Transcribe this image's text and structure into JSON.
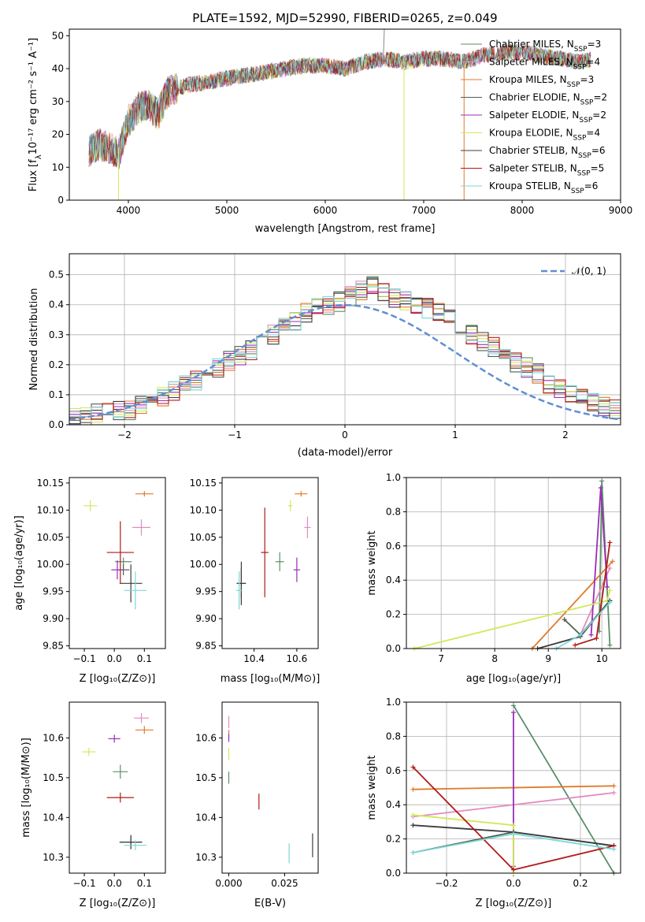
{
  "figure": {
    "title": "PLATE=1592, MJD=52990, FIBERID=0265, z=0.049"
  },
  "models": [
    {
      "label": "Chabrier MILES, N",
      "sub": "SSP",
      "tail": "=3",
      "color": "#5b8f6a"
    },
    {
      "label": "Salpeter MILES, N",
      "sub": "SSP",
      "tail": "=4",
      "color": "#e58ac0"
    },
    {
      "label": "Kroupa MILES, N",
      "sub": "SSP",
      "tail": "=3",
      "color": "#e07b2a"
    },
    {
      "label": "Chabrier ELODIE, N",
      "sub": "SSP",
      "tail": "=2",
      "color": "#4f5f4f"
    },
    {
      "label": "Salpeter ELODIE, N",
      "sub": "SSP",
      "tail": "=2",
      "color": "#9a2eb6"
    },
    {
      "label": "Kroupa ELODIE, N",
      "sub": "SSP",
      "tail": "=4",
      "color": "#d2e85a"
    },
    {
      "label": "Chabrier STELIB, N",
      "sub": "SSP",
      "tail": "=6",
      "color": "#3d3d3d"
    },
    {
      "label": "Salpeter STELIB, N",
      "sub": "SSP",
      "tail": "=5",
      "color": "#b01a1a"
    },
    {
      "label": "Kroupa STELIB, N",
      "sub": "SSP",
      "tail": "=6",
      "color": "#7fd6d6"
    }
  ],
  "chart_data": [
    {
      "type": "line",
      "id": "spectrum",
      "title": "PLATE=1592, MJD=52990, FIBERID=0265, z=0.049",
      "xlabel": "wavelength [Angstrom, rest frame]",
      "ylabel_main": "Flux [f",
      "ylabel_sub": "λ",
      "ylabel_tail": "10⁻¹⁷ erg cm⁻² s⁻¹ A⁻¹]",
      "xlim": [
        3400,
        9000
      ],
      "ylim": [
        0,
        52
      ],
      "xticks": [
        "4000",
        "5000",
        "6000",
        "7000",
        "8000",
        "9000"
      ],
      "yticks": [
        "0",
        "10",
        "20",
        "30",
        "40",
        "50"
      ],
      "continuum": {
        "x": [
          3600,
          3700,
          3800,
          3900,
          4000,
          4100,
          4200,
          4300,
          4400,
          4500,
          4600,
          4800,
          5000,
          5200,
          5400,
          5600,
          5800,
          6000,
          6200,
          6400,
          6600,
          6800,
          7000,
          7200,
          7400,
          7600,
          7800,
          8000,
          8200,
          8400,
          8600,
          8700
        ],
        "y": [
          15,
          17,
          16,
          14,
          24,
          28,
          29,
          26,
          33,
          34,
          35,
          36,
          37,
          38,
          39,
          40,
          41,
          41,
          40,
          42,
          43,
          42,
          43,
          43,
          42,
          44,
          45,
          45,
          44,
          43,
          42,
          43
        ]
      },
      "legend_position": "top-right",
      "grid": false
    },
    {
      "type": "histogram",
      "id": "residuals",
      "xlabel": "(data-model)/error",
      "ylabel": "Normed distribution",
      "xlim": [
        -2.5,
        2.5
      ],
      "ylim": [
        0,
        0.57
      ],
      "xticks": [
        -2,
        -1,
        0,
        1,
        2
      ],
      "xtick_labels": [
        "−2",
        "−1",
        "0",
        "1",
        "2"
      ],
      "yticks": [
        "0.0",
        "0.1",
        "0.2",
        "0.3",
        "0.4",
        "0.5"
      ],
      "grid": true,
      "bin_width": 0.1,
      "bin_start": -2.5,
      "base_values": [
        0.03,
        0.03,
        0.04,
        0.04,
        0.05,
        0.05,
        0.06,
        0.07,
        0.09,
        0.11,
        0.13,
        0.15,
        0.17,
        0.19,
        0.21,
        0.23,
        0.25,
        0.28,
        0.3,
        0.32,
        0.35,
        0.37,
        0.39,
        0.4,
        0.41,
        0.43,
        0.45,
        0.46,
        0.44,
        0.42,
        0.41,
        0.4,
        0.39,
        0.37,
        0.35,
        0.32,
        0.3,
        0.28,
        0.26,
        0.23,
        0.21,
        0.19,
        0.17,
        0.14,
        0.12,
        0.1,
        0.09,
        0.08,
        0.06,
        0.05
      ],
      "gaussian_label": "𝒩(0, 1)",
      "gaussian_color": "#5f8fd6"
    },
    {
      "type": "scatter",
      "id": "age-vs-Z",
      "xlabel": "Z [log₁₀(Z/Z⊙)]",
      "ylabel": "age  [log₁₀(age/yr)]",
      "xlim": [
        -0.15,
        0.17
      ],
      "ylim": [
        9.845,
        10.16
      ],
      "xticks": [
        "−0.1",
        "0.0",
        "0.1"
      ],
      "yticks": [
        "9.85",
        "9.90",
        "9.95",
        "10.00",
        "10.05",
        "10.10",
        "10.15"
      ],
      "points": [
        {
          "model": 0,
          "x": 0.03,
          "y": 10.005,
          "dx": 0.055,
          "dy": 0.015
        },
        {
          "model": 1,
          "x": 0.09,
          "y": 10.068,
          "dx": 0.06,
          "dy": 0.03
        },
        {
          "model": 2,
          "x": 0.1,
          "y": 10.13,
          "dx": 0.06,
          "dy": 0.01
        },
        {
          "model": 3,
          "x": 0.03,
          "y": 9.99,
          "dx": 0.04,
          "dy": 0.02
        },
        {
          "model": 4,
          "x": 0.01,
          "y": 9.99,
          "dx": 0.04,
          "dy": 0.035
        },
        {
          "model": 5,
          "x": -0.08,
          "y": 10.108,
          "dx": 0.045,
          "dy": 0.02
        },
        {
          "model": 6,
          "x": 0.055,
          "y": 9.965,
          "dx": 0.075,
          "dy": 0.07
        },
        {
          "model": 7,
          "x": 0.02,
          "y": 10.022,
          "dx": 0.09,
          "dy": 0.115
        },
        {
          "model": 8,
          "x": 0.07,
          "y": 9.952,
          "dx": 0.075,
          "dy": 0.07
        }
      ]
    },
    {
      "type": "scatter",
      "id": "age-vs-mass",
      "xlabel": "mass [log₁₀(M/M⊙)]",
      "ylabel": "",
      "xlim": [
        10.25,
        10.7
      ],
      "ylim": [
        9.845,
        10.16
      ],
      "xticks": [
        "10.4",
        "10.6"
      ],
      "xtick_values": [
        10.4,
        10.6
      ],
      "yticks": [
        "9.85",
        "9.90",
        "9.95",
        "10.00",
        "10.05",
        "10.10",
        "10.15"
      ],
      "points": [
        {
          "model": 0,
          "x": 10.52,
          "y": 10.005,
          "dx": 0.04,
          "dy": 0.035
        },
        {
          "model": 1,
          "x": 10.65,
          "y": 10.068,
          "dx": 0.03,
          "dy": 0.04
        },
        {
          "model": 2,
          "x": 10.62,
          "y": 10.13,
          "dx": 0.06,
          "dy": 0.01
        },
        {
          "model": 3,
          "x": 10.34,
          "y": 9.965,
          "dx": 0.045,
          "dy": 0.055
        },
        {
          "model": 4,
          "x": 10.6,
          "y": 9.99,
          "dx": 0.03,
          "dy": 0.045
        },
        {
          "model": 5,
          "x": 10.57,
          "y": 10.108,
          "dx": 0.02,
          "dy": 0.02
        },
        {
          "model": 6,
          "x": 10.34,
          "y": 9.965,
          "dx": 0.04,
          "dy": 0.08
        },
        {
          "model": 7,
          "x": 10.45,
          "y": 10.022,
          "dx": 0.035,
          "dy": 0.165
        },
        {
          "model": 8,
          "x": 10.33,
          "y": 9.952,
          "dx": 0.03,
          "dy": 0.07
        }
      ]
    },
    {
      "type": "line",
      "id": "weight-vs-age",
      "xlabel": "age  [log₁₀(age/yr)]",
      "ylabel": "mass weight",
      "xlim": [
        6.35,
        10.35
      ],
      "ylim": [
        0,
        1.0
      ],
      "xticks": [
        "7",
        "8",
        "9",
        "10"
      ],
      "xtick_values": [
        7,
        8,
        9,
        10
      ],
      "yticks": [
        "0.0",
        "0.2",
        "0.4",
        "0.6",
        "0.8",
        "1.0"
      ],
      "grid": true,
      "series": [
        {
          "model": 0,
          "x": [
            9.95,
            10.0,
            10.15
          ],
          "y": [
            0.1,
            0.98,
            0.02
          ]
        },
        {
          "model": 1,
          "x": [
            9.6,
            10.15
          ],
          "y": [
            0.08,
            0.47
          ]
        },
        {
          "model": 2,
          "x": [
            8.7,
            10.2
          ],
          "y": [
            0.0,
            0.51
          ]
        },
        {
          "model": 3,
          "x": [
            9.3,
            9.6,
            10.15
          ],
          "y": [
            0.17,
            0.08,
            0.28
          ]
        },
        {
          "model": 4,
          "x": [
            9.8,
            9.98,
            10.1
          ],
          "y": [
            0.08,
            0.94,
            0.36
          ]
        },
        {
          "model": 5,
          "x": [
            6.5,
            10.1,
            10.15
          ],
          "y": [
            0.0,
            0.28,
            0.34
          ]
        },
        {
          "model": 6,
          "x": [
            8.8,
            9.6,
            10.15
          ],
          "y": [
            0.0,
            0.07,
            0.28
          ]
        },
        {
          "model": 7,
          "x": [
            9.5,
            9.9,
            10.15
          ],
          "y": [
            0.02,
            0.06,
            0.62
          ]
        },
        {
          "model": 8,
          "x": [
            9.15,
            9.6,
            10.15
          ],
          "y": [
            0.0,
            0.08,
            0.27
          ]
        }
      ]
    },
    {
      "type": "scatter",
      "id": "mass-vs-Z",
      "xlabel": "Z [log₁₀(Z/Z⊙)]",
      "ylabel": "mass [log₁₀(M/M⊙)]",
      "xlim": [
        -0.15,
        0.17
      ],
      "ylim": [
        10.26,
        10.69
      ],
      "xticks": [
        "−0.1",
        "0.0",
        "0.1"
      ],
      "yticks": [
        "10.3",
        "10.4",
        "10.5",
        "10.6"
      ],
      "ytick_values": [
        10.3,
        10.4,
        10.5,
        10.6
      ],
      "points": [
        {
          "model": 0,
          "x": 0.02,
          "y": 10.515,
          "dx": 0.05,
          "dy": 0.035
        },
        {
          "model": 1,
          "x": 0.09,
          "y": 10.65,
          "dx": 0.05,
          "dy": 0.025
        },
        {
          "model": 2,
          "x": 0.1,
          "y": 10.62,
          "dx": 0.06,
          "dy": 0.02
        },
        {
          "model": 3,
          "x": 0.055,
          "y": 10.338,
          "dx": 0.075,
          "dy": 0.035
        },
        {
          "model": 4,
          "x": 0.0,
          "y": 10.598,
          "dx": 0.04,
          "dy": 0.02
        },
        {
          "model": 5,
          "x": -0.085,
          "y": 10.565,
          "dx": 0.045,
          "dy": 0.02
        },
        {
          "model": 6,
          "x": 0.055,
          "y": 10.338,
          "dx": 0.075,
          "dy": 0.035
        },
        {
          "model": 7,
          "x": 0.02,
          "y": 10.45,
          "dx": 0.09,
          "dy": 0.025
        },
        {
          "model": 8,
          "x": 0.07,
          "y": 10.33,
          "dx": 0.075,
          "dy": 0.025
        }
      ]
    },
    {
      "type": "scatter",
      "id": "mass-vs-ebv",
      "xlabel": "E(B-V)",
      "ylabel": "",
      "xlim": [
        -0.003,
        0.04
      ],
      "ylim": [
        10.26,
        10.69
      ],
      "xticks": [
        "0.000",
        "0.025"
      ],
      "xtick_values": [
        0.0,
        0.025
      ],
      "yticks": [
        "10.3",
        "10.4",
        "10.5",
        "10.6"
      ],
      "ytick_values": [
        10.3,
        10.4,
        10.5,
        10.6
      ],
      "points": [
        {
          "model": 0,
          "x": 0.0,
          "y": 10.5,
          "dx": 0.0,
          "dy": 0.03
        },
        {
          "model": 1,
          "x": 0.0,
          "y": 10.64,
          "dx": 0.0,
          "dy": 0.03
        },
        {
          "model": 2,
          "x": 0.0,
          "y": 10.61,
          "dx": 0.0,
          "dy": 0.02
        },
        {
          "model": 4,
          "x": 0.0,
          "y": 10.6,
          "dx": 0.0,
          "dy": 0.02
        },
        {
          "model": 5,
          "x": 0.0,
          "y": 10.56,
          "dx": 0.0,
          "dy": 0.03
        },
        {
          "model": 7,
          "x": 0.0135,
          "y": 10.44,
          "dx": 0.0,
          "dy": 0.04
        },
        {
          "model": 8,
          "x": 0.027,
          "y": 10.31,
          "dx": 0.0,
          "dy": 0.05
        },
        {
          "model": 6,
          "x": 0.0375,
          "y": 10.33,
          "dx": 0.0,
          "dy": 0.06
        }
      ]
    },
    {
      "type": "line",
      "id": "weight-vs-Z",
      "xlabel": "Z [log₁₀(Z/Z⊙)]",
      "ylabel": "mass weight",
      "xlim": [
        -0.32,
        0.32
      ],
      "ylim": [
        0,
        1.0
      ],
      "xticks": [
        "−0.2",
        "0.0",
        "0.2"
      ],
      "xtick_values": [
        -0.2,
        0.0,
        0.2
      ],
      "yticks": [
        "0.0",
        "0.2",
        "0.4",
        "0.6",
        "0.8",
        "1.0"
      ],
      "grid": true,
      "series": [
        {
          "model": 0,
          "x": [
            0.0,
            0.3
          ],
          "y": [
            0.98,
            0.0
          ]
        },
        {
          "model": 1,
          "x": [
            -0.3,
            0.3
          ],
          "y": [
            0.33,
            0.47
          ]
        },
        {
          "model": 2,
          "x": [
            -0.3,
            0.3
          ],
          "y": [
            0.49,
            0.51
          ]
        },
        {
          "model": 3,
          "x": [
            -0.3,
            0.0,
            0.3
          ],
          "y": [
            0.12,
            0.24,
            0.16
          ]
        },
        {
          "model": 4,
          "x": [
            0.0,
            0.0
          ],
          "y": [
            0.94,
            0.04
          ]
        },
        {
          "model": 5,
          "x": [
            -0.3,
            0.0,
            0.0
          ],
          "y": [
            0.34,
            0.28,
            0.0
          ]
        },
        {
          "model": 6,
          "x": [
            -0.3,
            0.0,
            0.3
          ],
          "y": [
            0.28,
            0.24,
            0.16
          ]
        },
        {
          "model": 7,
          "x": [
            -0.3,
            0.0,
            0.3
          ],
          "y": [
            0.62,
            0.02,
            0.16
          ]
        },
        {
          "model": 8,
          "x": [
            -0.3,
            0.0,
            0.3
          ],
          "y": [
            0.12,
            0.23,
            0.14
          ]
        }
      ]
    }
  ]
}
